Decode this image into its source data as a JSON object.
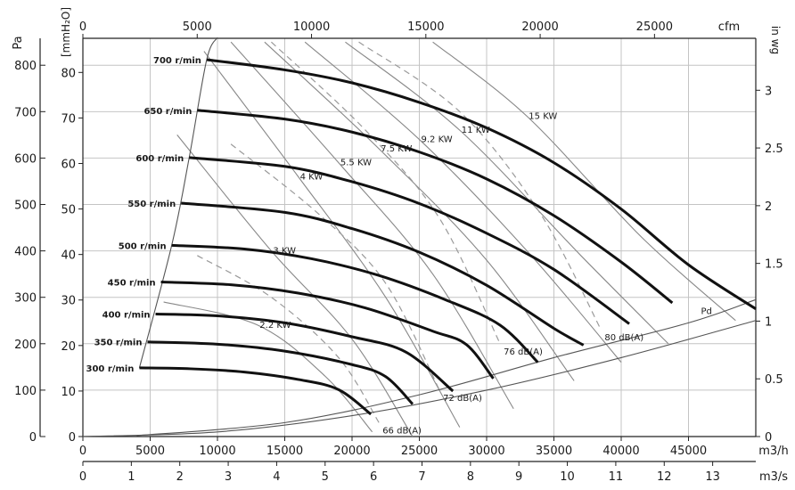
{
  "chart_data": {
    "type": "line",
    "title": "",
    "grid": true,
    "axes": {
      "x_bottom_m3h": {
        "label": "m3/h",
        "range": [
          0,
          50000
        ],
        "ticks": [
          0,
          5000,
          10000,
          15000,
          20000,
          25000,
          30000,
          35000,
          40000,
          45000
        ],
        "tick_labels": [
          "0",
          "5000",
          "10000",
          "15000",
          "20000",
          "25000",
          "30000",
          "35000",
          "40000",
          "45000"
        ]
      },
      "x_bottom_m3s": {
        "label": "m3/s",
        "range": [
          0,
          13.89
        ],
        "ticks": [
          0,
          1,
          2,
          3,
          4,
          5,
          6,
          7,
          8,
          9,
          10,
          11,
          12,
          13
        ],
        "tick_labels": [
          "0",
          "1",
          "2",
          "3",
          "4",
          "5",
          "6",
          "7",
          "8",
          "9",
          "10",
          "11",
          "12",
          "13"
        ]
      },
      "x_top_cfm": {
        "label": "cfm",
        "range": [
          0,
          29430
        ],
        "ticks": [
          0,
          5000,
          10000,
          15000,
          20000,
          25000
        ],
        "tick_labels": [
          "0",
          "5000",
          "10000",
          "15000",
          "20000",
          "25000"
        ]
      },
      "y_left_pa": {
        "label": "Pa",
        "range": [
          0,
          858
        ],
        "ticks": [
          0,
          100,
          200,
          300,
          400,
          500,
          600,
          700,
          800
        ],
        "tick_labels": [
          "0",
          "100",
          "200",
          "300",
          "400",
          "500",
          "600",
          "700",
          "800"
        ]
      },
      "y_left_mmh2o": {
        "label": "[mmH₂O]",
        "range": [
          0,
          87.5
        ],
        "ticks": [
          0,
          10,
          20,
          30,
          40,
          50,
          60,
          70,
          80
        ],
        "tick_labels": [
          "0",
          "10",
          "20",
          "30",
          "40",
          "50",
          "60",
          "70",
          "80"
        ]
      },
      "y_right_inwg": {
        "label": "in wg",
        "range": [
          0,
          3.45
        ],
        "ticks": [
          0,
          0.5,
          1,
          1.5,
          2,
          2.5,
          3
        ],
        "tick_labels": [
          "0",
          "0.5",
          "1",
          "1.5",
          "2",
          "2.5",
          "3"
        ]
      }
    },
    "series": [
      {
        "name": "700 r/min",
        "points": [
          [
            9200,
            812
          ],
          [
            15000,
            790
          ],
          [
            20000,
            762
          ],
          [
            25000,
            720
          ],
          [
            30000,
            665
          ],
          [
            35000,
            590
          ],
          [
            40000,
            490
          ],
          [
            45000,
            370
          ],
          [
            50000,
            275
          ]
        ]
      },
      {
        "name": "650 r/min",
        "points": [
          [
            8500,
            703
          ],
          [
            15000,
            684
          ],
          [
            20000,
            656
          ],
          [
            25000,
            613
          ],
          [
            30000,
            555
          ],
          [
            35000,
            476
          ],
          [
            40000,
            376
          ],
          [
            43800,
            288
          ]
        ]
      },
      {
        "name": "600 r/min",
        "points": [
          [
            7900,
            601
          ],
          [
            15000,
            582
          ],
          [
            20000,
            549
          ],
          [
            25000,
            502
          ],
          [
            30000,
            438
          ],
          [
            35000,
            360
          ],
          [
            40600,
            243
          ]
        ]
      },
      {
        "name": "550 r/min",
        "points": [
          [
            7300,
            503
          ],
          [
            15000,
            483
          ],
          [
            20000,
            448
          ],
          [
            25000,
            397
          ],
          [
            30000,
            326
          ],
          [
            35000,
            233
          ],
          [
            37200,
            197
          ]
        ]
      },
      {
        "name": "500 r/min",
        "points": [
          [
            6600,
            412
          ],
          [
            12000,
            404
          ],
          [
            17000,
            383
          ],
          [
            22000,
            347
          ],
          [
            27000,
            294
          ],
          [
            31000,
            240
          ],
          [
            33800,
            160
          ]
        ]
      },
      {
        "name": "450 r/min",
        "points": [
          [
            5800,
            333
          ],
          [
            11000,
            327
          ],
          [
            16000,
            309
          ],
          [
            21000,
            277
          ],
          [
            26000,
            227
          ],
          [
            28500,
            198
          ],
          [
            30500,
            125
          ]
        ]
      },
      {
        "name": "400 r/min",
        "points": [
          [
            5400,
            264
          ],
          [
            10000,
            260
          ],
          [
            15000,
            245
          ],
          [
            20000,
            215
          ],
          [
            24000,
            182
          ],
          [
            27500,
            98
          ]
        ]
      },
      {
        "name": "350 r/min",
        "points": [
          [
            4800,
            204
          ],
          [
            10000,
            199
          ],
          [
            15000,
            184
          ],
          [
            20000,
            155
          ],
          [
            22500,
            129
          ],
          [
            24500,
            70
          ]
        ]
      },
      {
        "name": "300 r/min",
        "points": [
          [
            4200,
            148
          ],
          [
            8000,
            146
          ],
          [
            12000,
            139
          ],
          [
            16000,
            123
          ],
          [
            19000,
            101
          ],
          [
            21400,
            48
          ]
        ]
      }
    ],
    "power_lines": [
      {
        "name": "2.2 KW",
        "points": [
          [
            6000,
            290
          ],
          [
            13000,
            240
          ],
          [
            18000,
            130
          ],
          [
            21500,
            10
          ]
        ]
      },
      {
        "name": "3 KW",
        "points": [
          [
            7000,
            650
          ],
          [
            14000,
            400
          ],
          [
            20000,
            210
          ],
          [
            24500,
            0
          ]
        ]
      },
      {
        "name": "4 KW",
        "points": [
          [
            9000,
            830
          ],
          [
            16000,
            560
          ],
          [
            22500,
            300
          ],
          [
            28000,
            20
          ]
        ]
      },
      {
        "name": "5.5 KW",
        "points": [
          [
            11000,
            850
          ],
          [
            19000,
            590
          ],
          [
            26000,
            350
          ],
          [
            32000,
            60
          ]
        ]
      },
      {
        "name": "7.5 KW",
        "points": [
          [
            13500,
            850
          ],
          [
            22000,
            620
          ],
          [
            30000,
            380
          ],
          [
            36500,
            120
          ]
        ]
      },
      {
        "name": "9.2 KW",
        "points": [
          [
            16500,
            850
          ],
          [
            25000,
            640
          ],
          [
            33000,
            400
          ],
          [
            40000,
            160
          ]
        ]
      },
      {
        "name": "11 KW",
        "points": [
          [
            19500,
            850
          ],
          [
            28000,
            660
          ],
          [
            37000,
            390
          ],
          [
            43500,
            200
          ]
        ]
      },
      {
        "name": "15 KW",
        "points": [
          [
            26000,
            850
          ],
          [
            33000,
            690
          ],
          [
            41500,
            430
          ],
          [
            48500,
            250
          ]
        ]
      }
    ],
    "noise_lines": [
      {
        "name": "66 dB(A)",
        "points": [
          [
            8500,
            390
          ],
          [
            14000,
            300
          ],
          [
            19000,
            170
          ],
          [
            22000,
            30
          ]
        ]
      },
      {
        "name": "72 dB(A)",
        "points": [
          [
            11000,
            630
          ],
          [
            17500,
            480
          ],
          [
            22500,
            330
          ],
          [
            26500,
            100
          ]
        ]
      },
      {
        "name": "76 dB(A)",
        "points": [
          [
            14000,
            850
          ],
          [
            21000,
            660
          ],
          [
            26500,
            470
          ],
          [
            31000,
            200
          ]
        ]
      },
      {
        "name": "80 dB(A)",
        "points": [
          [
            20500,
            850
          ],
          [
            28000,
            700
          ],
          [
            34000,
            480
          ],
          [
            38500,
            230
          ]
        ]
      }
    ],
    "extra_lines": [
      {
        "name": "Pd",
        "points": [
          [
            4000,
            2
          ],
          [
            15000,
            30
          ],
          [
            25000,
            90
          ],
          [
            35000,
            170
          ],
          [
            45000,
            245
          ],
          [
            50000,
            295
          ]
        ]
      },
      {
        "name": "",
        "points": [
          [
            0,
            0
          ],
          [
            10000,
            10
          ],
          [
            20000,
            45
          ],
          [
            30000,
            100
          ],
          [
            40000,
            170
          ],
          [
            50000,
            250
          ]
        ]
      },
      {
        "name": "",
        "points": [
          [
            4200,
            148
          ],
          [
            6600,
            412
          ],
          [
            7900,
            601
          ],
          [
            9200,
            812
          ],
          [
            10000,
            860
          ]
        ]
      }
    ]
  }
}
